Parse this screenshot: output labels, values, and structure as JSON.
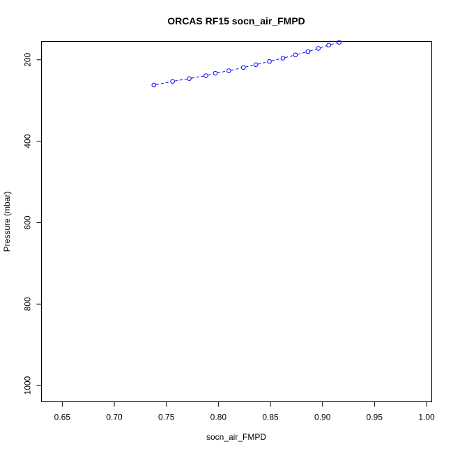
{
  "chart_data": {
    "type": "line",
    "title": "ORCAS RF15 socn_air_FMPD",
    "xlabel": "socn_air_FMPD",
    "ylabel": "Pressure (mbar)",
    "xlim": [
      0.63,
      1.005
    ],
    "ylim": [
      1040,
      155
    ],
    "y_reversed": true,
    "grid": false,
    "x_ticks": [
      "0.65",
      "0.70",
      "0.75",
      "0.80",
      "0.85",
      "0.90",
      "0.95",
      "1.00"
    ],
    "y_ticks": [
      "200",
      "400",
      "600",
      "800",
      "1000"
    ],
    "series": [
      {
        "color": "#0000ff",
        "marker": "open-circle",
        "line_style": "dashed",
        "x": [
          0.738,
          0.756,
          0.772,
          0.788,
          0.797,
          0.81,
          0.824,
          0.836,
          0.849,
          0.862,
          0.874,
          0.886,
          0.896,
          0.906,
          0.916
        ],
        "y": [
          262,
          253,
          246,
          239,
          233,
          227,
          219,
          212,
          204,
          196,
          188,
          180,
          172,
          164,
          157
        ]
      }
    ]
  }
}
